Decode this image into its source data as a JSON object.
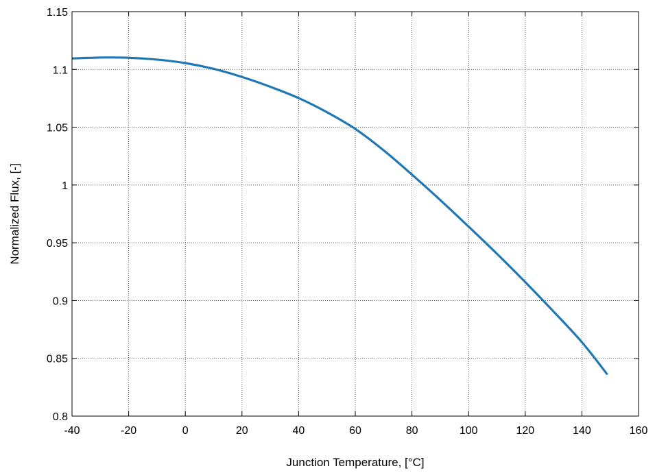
{
  "chart_data": {
    "type": "line",
    "title": "",
    "xlabel": "Junction Temperature, [°C]",
    "ylabel": "Normalized Flux, [-]",
    "xlim": [
      -40,
      160
    ],
    "ylim": [
      0.8,
      1.15
    ],
    "xticks": [
      -40,
      -20,
      0,
      20,
      40,
      60,
      80,
      100,
      120,
      140,
      160
    ],
    "xtick_labels": [
      "-40",
      "-20",
      "0",
      "20",
      "40",
      "60",
      "80",
      "100",
      "120",
      "140",
      "160"
    ],
    "yticks": [
      0.8,
      0.85,
      0.9,
      0.95,
      1.0,
      1.05,
      1.1,
      1.15
    ],
    "ytick_labels": [
      "0.8",
      "0.85",
      "0.9",
      "0.95",
      "1",
      "1.05",
      "1.1",
      "1.15"
    ],
    "grid": true,
    "grid_style": "dotted",
    "line_color": "#1f77b4",
    "series": [
      {
        "x": [
          -40,
          -30,
          -20,
          -10,
          0,
          10,
          20,
          30,
          40,
          50,
          60,
          70,
          80,
          90,
          100,
          110,
          120,
          130,
          140,
          149
        ],
        "y": [
          1.1095,
          1.1103,
          1.1101,
          1.1085,
          1.1055,
          1.1005,
          1.0935,
          1.085,
          1.0752,
          1.063,
          1.0485,
          1.03,
          1.009,
          0.987,
          0.964,
          0.9405,
          0.916,
          0.8905,
          0.864,
          0.836
        ]
      }
    ]
  }
}
